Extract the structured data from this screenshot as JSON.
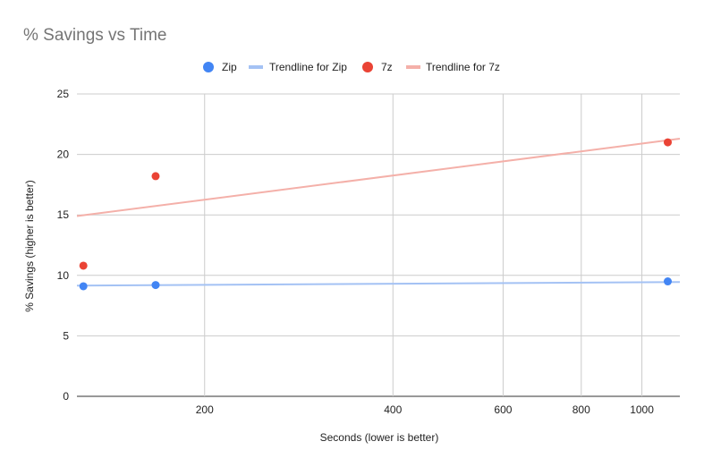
{
  "chart_data": {
    "type": "scatter",
    "title": "% Savings vs Time",
    "xlabel": "Seconds (lower is better)",
    "ylabel": "% Savings (higher is better)",
    "x_scale": "log",
    "xlim": [
      125,
      1150
    ],
    "ylim": [
      0,
      25
    ],
    "x_ticks": [
      200,
      400,
      600,
      800,
      1000
    ],
    "y_ticks": [
      0,
      5,
      10,
      15,
      20,
      25
    ],
    "grid": true,
    "legend_position": "top",
    "legend": [
      "Zip",
      "Trendline for Zip",
      "7z",
      "Trendline for 7z"
    ],
    "series": [
      {
        "name": "Zip",
        "color": "#4285f4",
        "points": [
          {
            "x": 128,
            "y": 9.1
          },
          {
            "x": 167,
            "y": 9.2
          },
          {
            "x": 1100,
            "y": 9.5
          }
        ],
        "trendline": {
          "name": "Trendline for Zip",
          "color": "#a4c2f4",
          "y_at_xmin": 9.15,
          "y_at_xmax": 9.45
        }
      },
      {
        "name": "7z",
        "color": "#ea4335",
        "points": [
          {
            "x": 128,
            "y": 10.8
          },
          {
            "x": 167,
            "y": 18.2
          },
          {
            "x": 1100,
            "y": 21.0
          }
        ],
        "trendline": {
          "name": "Trendline for 7z",
          "color": "#f4b0a9",
          "y_at_xmin": 14.9,
          "y_at_xmax": 21.3
        }
      }
    ]
  }
}
